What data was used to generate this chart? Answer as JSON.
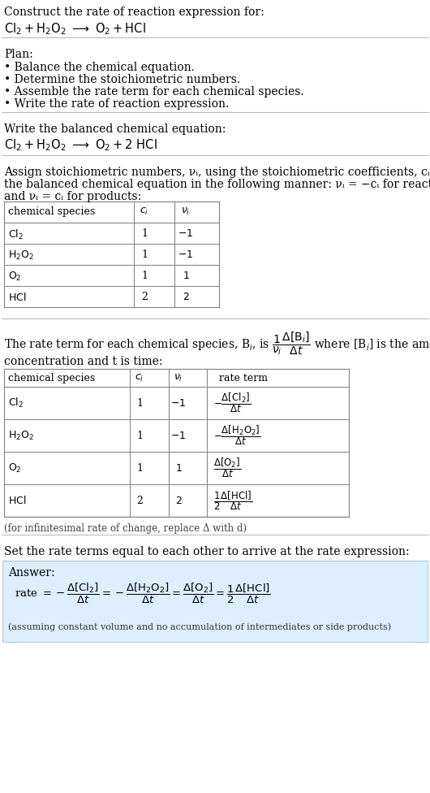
{
  "title_line1": "Construct the rate of reaction expression for:",
  "plan_title": "Plan:",
  "plan_items": [
    "• Balance the chemical equation.",
    "• Determine the stoichiometric numbers.",
    "• Assemble the rate term for each chemical species.",
    "• Write the rate of reaction expression."
  ],
  "balanced_label": "Write the balanced chemical equation:",
  "assign_text_line1": "Assign stoichiometric numbers, νᵢ, using the stoichiometric coefficients, cᵢ, from",
  "assign_text_line2": "the balanced chemical equation in the following manner: νᵢ = −cᵢ for reactants",
  "assign_text_line3": "and νᵢ = cᵢ for products:",
  "rate_term_text3": "concentration and t is time:",
  "infinitesimal_note": "(for infinitesimal rate of change, replace Δ with d)",
  "set_equal_text": "Set the rate terms equal to each other to arrive at the rate expression:",
  "answer_label": "Answer:",
  "answer_note": "(assuming constant volume and no accumulation of intermediates or side products)",
  "bg_color": "#ffffff",
  "text_color": "#000000",
  "answer_bg_color": "#ddeeff",
  "font_size": 10.0
}
